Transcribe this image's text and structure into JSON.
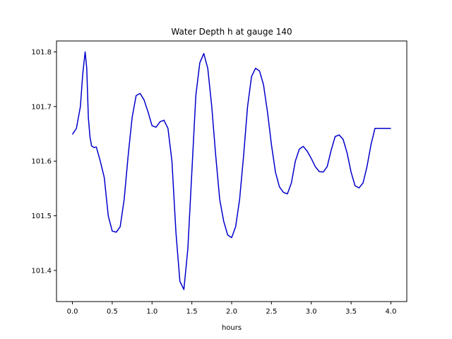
{
  "chart_data": {
    "type": "line",
    "title": "Water Depth h at gauge 140",
    "xlabel": "hours",
    "ylabel": "",
    "xlim": [
      -0.2,
      4.2
    ],
    "ylim": [
      101.343,
      101.82
    ],
    "xticks": [
      0.0,
      0.5,
      1.0,
      1.5,
      2.0,
      2.5,
      3.0,
      3.5,
      4.0
    ],
    "xtick_labels": [
      "0.0",
      "0.5",
      "1.0",
      "1.5",
      "2.0",
      "2.5",
      "3.0",
      "3.5",
      "4.0"
    ],
    "yticks": [
      101.4,
      101.5,
      101.6,
      101.7,
      101.8
    ],
    "ytick_labels": [
      "101.4",
      "101.5",
      "101.6",
      "101.7",
      "101.8"
    ],
    "grid": false,
    "line_color": "#0000cc",
    "series": [
      {
        "x": [
          0.0,
          0.05,
          0.1,
          0.13,
          0.16,
          0.18,
          0.2,
          0.22,
          0.24,
          0.27,
          0.3,
          0.35,
          0.4,
          0.45,
          0.5,
          0.55,
          0.6,
          0.65,
          0.7,
          0.75,
          0.8,
          0.85,
          0.9,
          0.95,
          1.0,
          1.05,
          1.1,
          1.15,
          1.2,
          1.25,
          1.3,
          1.35,
          1.4,
          1.45,
          1.5,
          1.55,
          1.6,
          1.65,
          1.7,
          1.75,
          1.8,
          1.85,
          1.9,
          1.95,
          2.0,
          2.05,
          2.1,
          2.15,
          2.2,
          2.25,
          2.3,
          2.35,
          2.4,
          2.45,
          2.5,
          2.55,
          2.6,
          2.65,
          2.7,
          2.75,
          2.8,
          2.85,
          2.9,
          2.95,
          3.0,
          3.05,
          3.1,
          3.15,
          3.2,
          3.25,
          3.3,
          3.35,
          3.4,
          3.45,
          3.5,
          3.55,
          3.6,
          3.65,
          3.7,
          3.75,
          3.8,
          3.85,
          3.9,
          3.95,
          4.0
        ],
        "y": [
          101.649,
          101.66,
          101.7,
          101.76,
          101.8,
          101.77,
          101.68,
          101.645,
          101.628,
          101.625,
          101.626,
          101.6,
          101.57,
          101.5,
          101.472,
          101.47,
          101.48,
          101.53,
          101.61,
          101.68,
          101.72,
          101.724,
          101.712,
          101.69,
          101.665,
          101.662,
          101.672,
          101.675,
          101.66,
          101.6,
          101.47,
          101.38,
          101.365,
          101.44,
          101.58,
          101.72,
          101.78,
          101.797,
          101.77,
          101.7,
          101.61,
          101.53,
          101.49,
          101.465,
          101.46,
          101.48,
          101.53,
          101.61,
          101.7,
          101.755,
          101.77,
          101.765,
          101.74,
          101.69,
          101.63,
          101.58,
          101.553,
          101.543,
          101.54,
          101.56,
          101.6,
          101.622,
          101.627,
          101.618,
          101.605,
          101.59,
          101.581,
          101.58,
          101.59,
          101.62,
          101.645,
          101.648,
          101.64,
          101.615,
          101.58,
          101.555,
          101.551,
          101.56,
          101.59,
          101.63,
          101.66,
          101.66,
          101.66,
          101.66,
          101.66
        ]
      }
    ]
  }
}
